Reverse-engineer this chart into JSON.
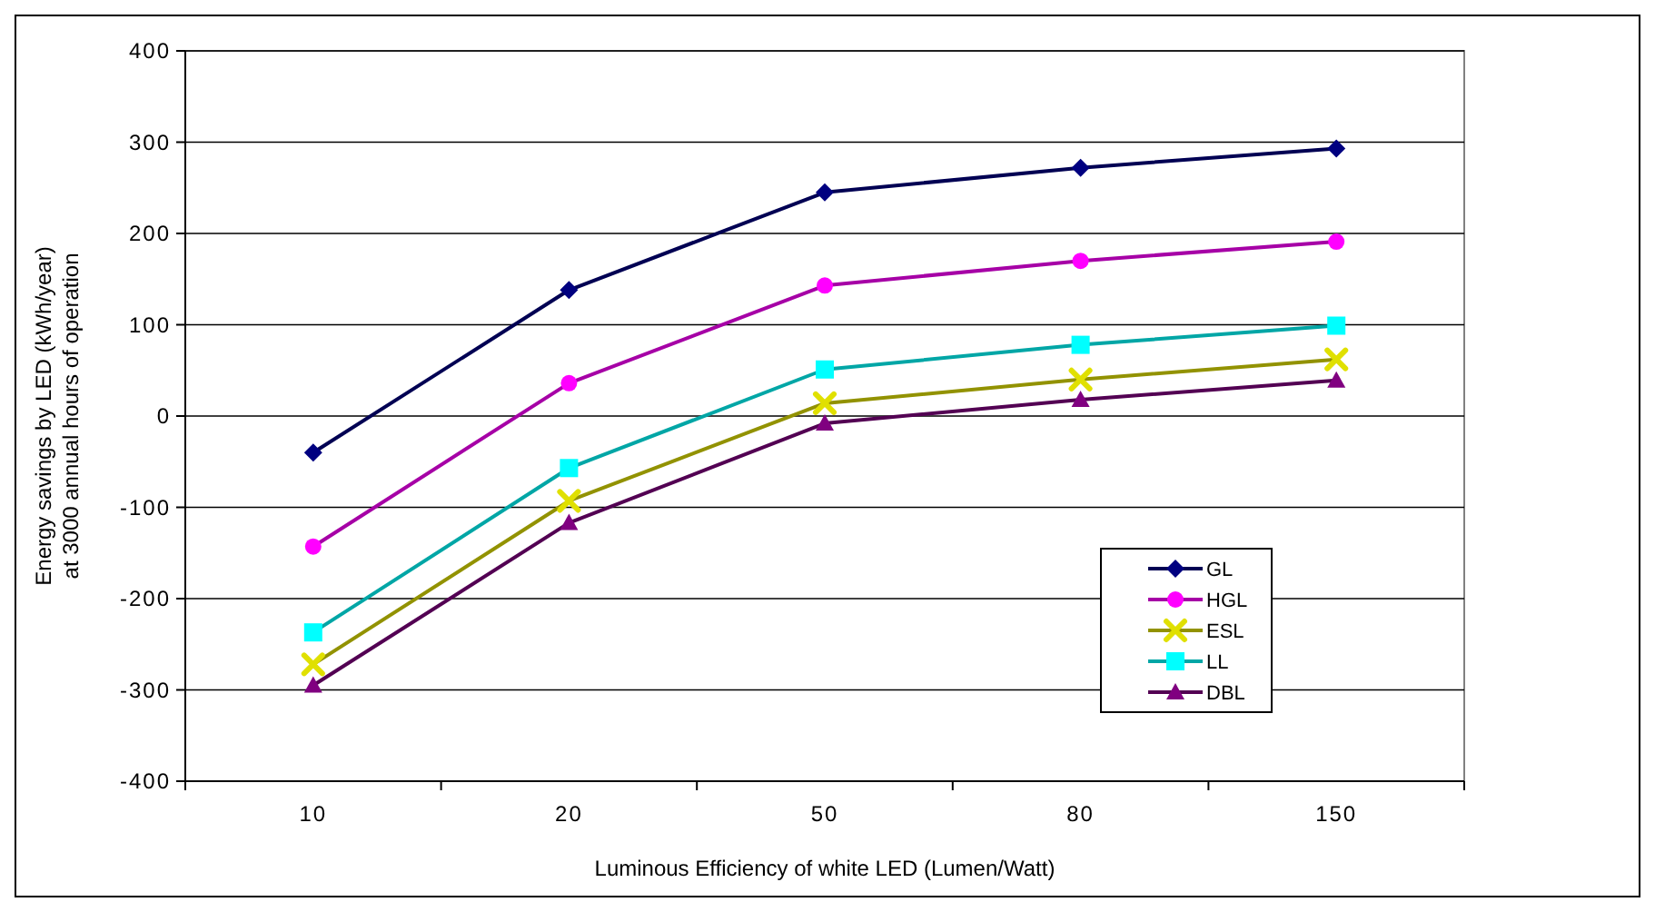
{
  "chart_data": {
    "type": "line",
    "xlabel": "Luminous Efficiency of white LED (Lumen/Watt)",
    "ylabel": "Energy savings by LED (kWh/year)\nat 3000 annual hours of operation",
    "categories": [
      "10",
      "20",
      "50",
      "80",
      "150"
    ],
    "ylim": [
      -400,
      400
    ],
    "yticks": [
      -400,
      -300,
      -200,
      -100,
      0,
      100,
      200,
      300,
      400
    ],
    "grid": "y",
    "legend": "bottom right",
    "series": [
      {
        "name": "GL",
        "color": "#000080",
        "marker": "diamond",
        "values": [
          -40,
          138,
          245,
          272,
          293
        ]
      },
      {
        "name": "HGL",
        "color": "#ff00ff",
        "marker": "circle",
        "values": [
          -143,
          36,
          143,
          170,
          191
        ]
      },
      {
        "name": "ESL",
        "color": "#e0e000",
        "marker": "cross",
        "values": [
          -272,
          -93,
          14,
          40,
          62
        ]
      },
      {
        "name": "LL",
        "color": "#00ffff",
        "marker": "square",
        "values": [
          -237,
          -57,
          51,
          78,
          99
        ]
      },
      {
        "name": "DBL",
        "color": "#800080",
        "marker": "triangle",
        "values": [
          -295,
          -117,
          -8,
          18,
          39
        ]
      }
    ]
  }
}
